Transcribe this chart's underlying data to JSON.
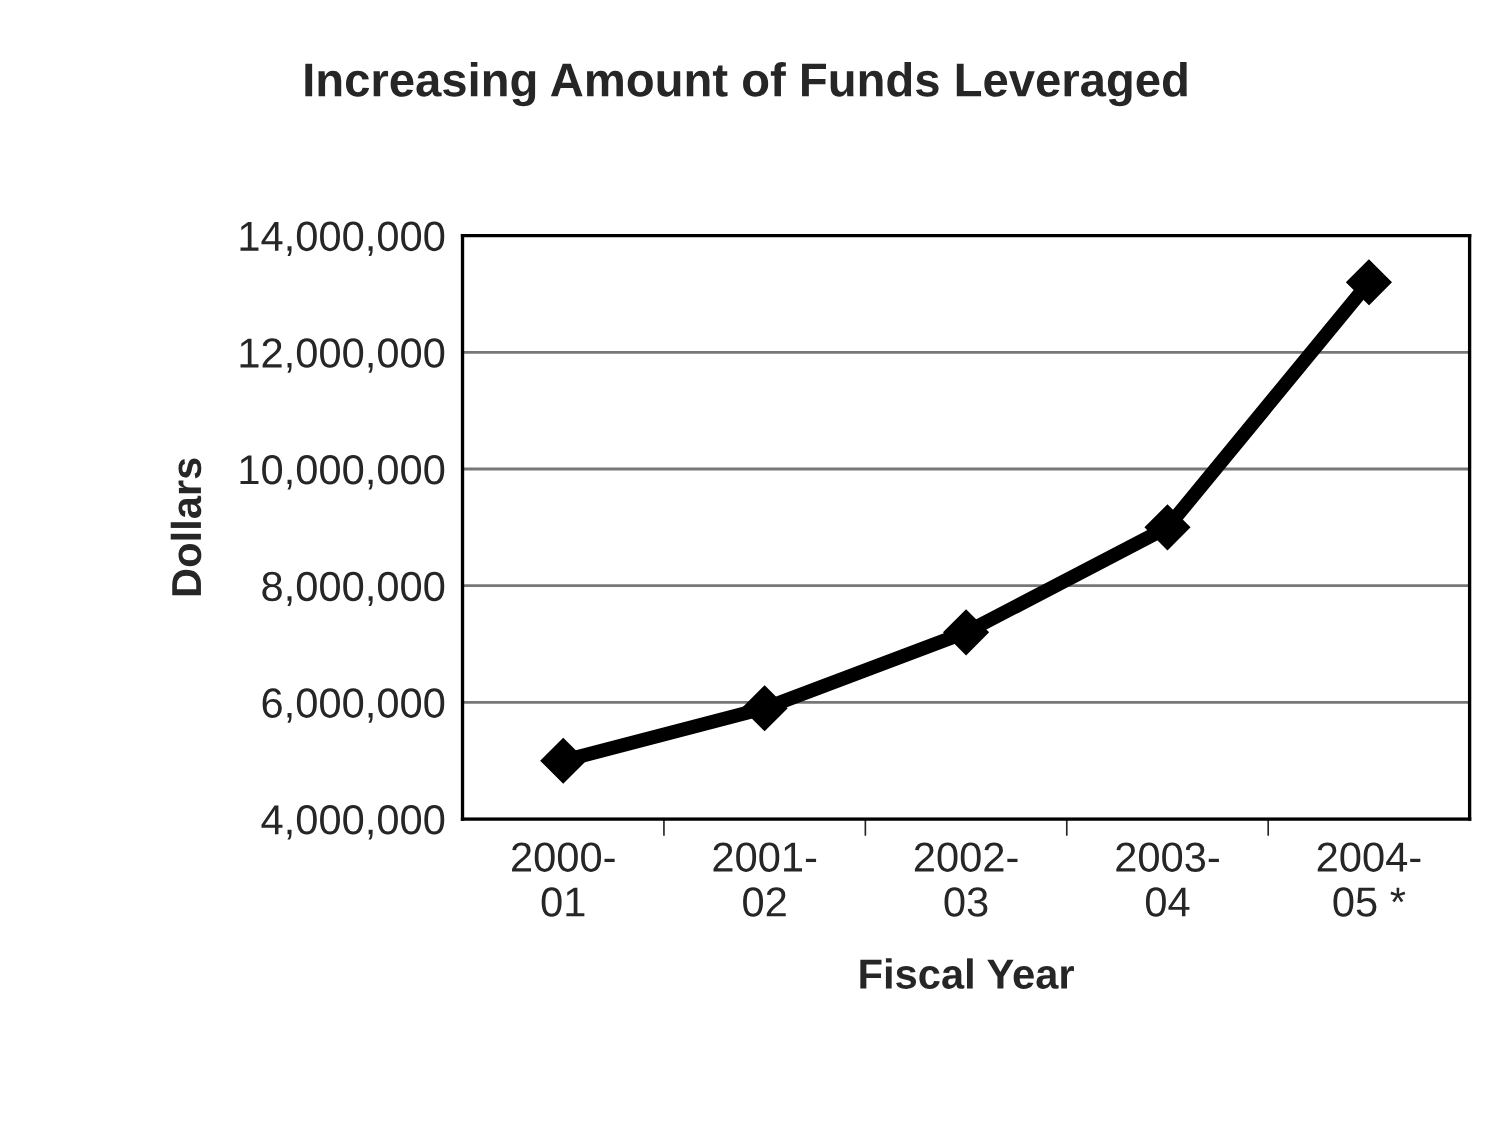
{
  "chart_data": {
    "type": "line",
    "title": "Increasing Amount of Funds Leveraged",
    "xlabel": "Fiscal Year",
    "ylabel": "Dollars",
    "categories": [
      "2000-\n01",
      "2001-\n02",
      "2002-\n03",
      "2003-\n04",
      "2004-\n05 *"
    ],
    "series": [
      {
        "color": "#000000",
        "values": [
          5000000,
          5900000,
          7200000,
          9000000,
          13200000
        ]
      }
    ],
    "ylim": [
      4000000,
      14000000
    ],
    "yticks": [
      {
        "value": 4000000,
        "label": "4,000,000"
      },
      {
        "value": 6000000,
        "label": "6,000,000"
      },
      {
        "value": 8000000,
        "label": "8,000,000"
      },
      {
        "value": 10000000,
        "label": "10,000,000"
      },
      {
        "value": 12000000,
        "label": "12,000,000"
      },
      {
        "value": 14000000,
        "label": "14,000,000"
      }
    ],
    "grid": "y",
    "marker": "diamond",
    "line_style": "solid"
  }
}
